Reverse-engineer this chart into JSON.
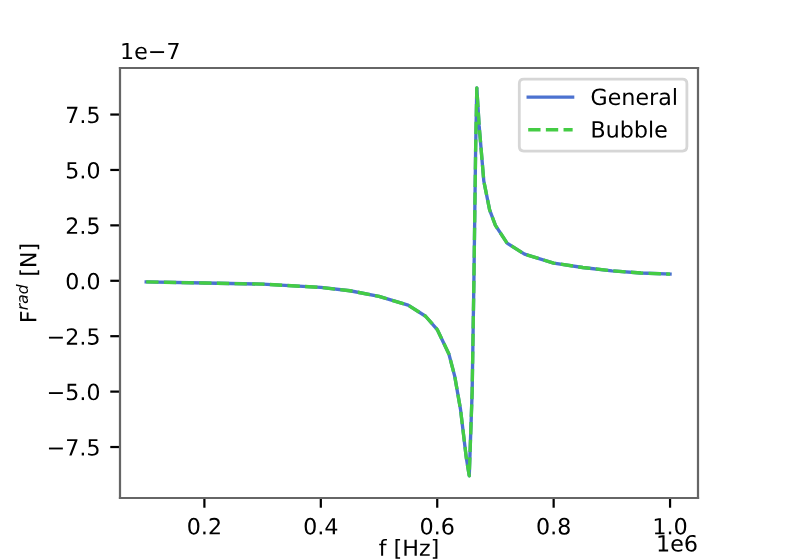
{
  "chart_data": {
    "type": "line",
    "xlabel": "f [Hz]",
    "ylabel": "F$^{rad}$ [N]",
    "annotations": [
      "1e6",
      "1e−7"
    ],
    "x": [
      0.1,
      0.2,
      0.3,
      0.4,
      0.45,
      0.5,
      0.55,
      0.58,
      0.6,
      0.62,
      0.63,
      0.64,
      0.65,
      0.655,
      0.66,
      0.663,
      0.666,
      0.668,
      0.672,
      0.68,
      0.69,
      0.7,
      0.72,
      0.75,
      0.8,
      0.85,
      0.9,
      0.95,
      1.0
    ],
    "series": [
      {
        "name": "General",
        "color": "#4c72d0",
        "line_style": "solid",
        "values": [
          -0.05,
          -0.1,
          -0.15,
          -0.3,
          -0.45,
          -0.7,
          -1.1,
          -1.6,
          -2.2,
          -3.3,
          -4.3,
          -5.8,
          -8.0,
          -8.8,
          -5.0,
          0,
          6.0,
          8.7,
          7.0,
          4.5,
          3.2,
          2.5,
          1.7,
          1.2,
          0.8,
          0.6,
          0.45,
          0.35,
          0.3
        ]
      },
      {
        "name": "Bubble",
        "color": "#44cc44",
        "line_style": "dashed",
        "values": [
          -0.05,
          -0.1,
          -0.15,
          -0.3,
          -0.45,
          -0.7,
          -1.1,
          -1.6,
          -2.2,
          -3.3,
          -4.3,
          -5.8,
          -8.0,
          -8.8,
          -5.0,
          0,
          6.0,
          8.7,
          7.0,
          4.5,
          3.2,
          2.5,
          1.7,
          1.2,
          0.8,
          0.6,
          0.45,
          0.35,
          0.3
        ]
      }
    ],
    "xlim": [
      0.055,
      1.048
    ],
    "ylim": [
      -9.8,
      9.6
    ],
    "xticks": [
      {
        "value": 0.2,
        "label": "0.2"
      },
      {
        "value": 0.4,
        "label": "0.4"
      },
      {
        "value": 0.6,
        "label": "0.6"
      },
      {
        "value": 0.8,
        "label": "0.8"
      },
      {
        "value": 1.0,
        "label": "1.0"
      }
    ],
    "yticks": [
      {
        "value": -7.5,
        "label": "−7.5"
      },
      {
        "value": -5.0,
        "label": "−5.0"
      },
      {
        "value": -2.5,
        "label": "−2.5"
      },
      {
        "value": 0,
        "label": "0.0"
      },
      {
        "value": 2.5,
        "label": "2.5"
      },
      {
        "value": 5.0,
        "label": "5.0"
      },
      {
        "value": 7.5,
        "label": "7.5"
      }
    ],
    "grid": false,
    "legend": "upper right"
  }
}
